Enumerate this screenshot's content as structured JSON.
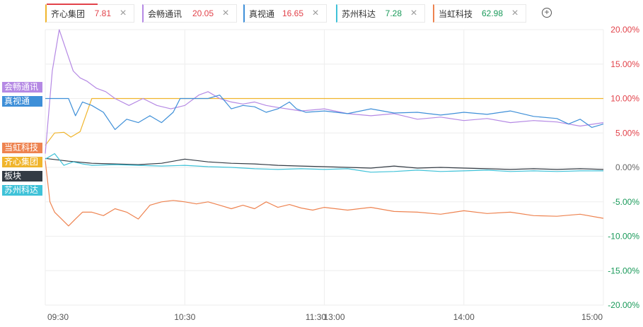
{
  "tabs": [
    {
      "name": "齐心集团",
      "price": "7.81",
      "color": "#f0b52c",
      "price_color": "#e2424a",
      "active": true
    },
    {
      "name": "会畅通讯",
      "price": "20.05",
      "color": "#b589e4",
      "price_color": "#e2424a"
    },
    {
      "name": "真视通",
      "price": "16.65",
      "color": "#3e8fd8",
      "price_color": "#e2424a"
    },
    {
      "name": "苏州科达",
      "price": "7.28",
      "color": "#3fc2d8",
      "price_color": "#1a9a5a"
    },
    {
      "name": "当虹科技",
      "price": "62.98",
      "color": "#ee8350",
      "price_color": "#1a9a5a"
    }
  ],
  "add_icon": "plus-circle-icon",
  "close_icon": "close-icon",
  "series_labels": [
    {
      "text": "会畅通讯",
      "color": "#b589e4"
    },
    {
      "text": "真视通",
      "color": "#3e8fd8"
    },
    {
      "text": "当虹科技",
      "color": "#ee8350"
    },
    {
      "text": "齐心集团",
      "color": "#f0b52c"
    },
    {
      "text": "板块",
      "color": "#333b44"
    },
    {
      "text": "苏州科达",
      "color": "#3fc2d8"
    }
  ],
  "chart_data": {
    "type": "line",
    "ylim": [
      -20,
      20
    ],
    "y_ticks": [
      20,
      15,
      10,
      5,
      0,
      -5,
      -10,
      -15,
      -20
    ],
    "y_tick_labels": [
      "20.00%",
      "15.00%",
      "10.00%",
      "5.00%",
      "0.00%",
      "-5.00%",
      "-10.00%",
      "-15.00%",
      "-20.00%"
    ],
    "x_ticks": [
      "09:30",
      "10:30",
      "11:30",
      "13:00",
      "14:00",
      "15:00"
    ],
    "grid": true,
    "series": [
      {
        "name": "齐心集团",
        "color": "#f0b52c",
        "x": [
          0,
          4,
          8,
          11,
          15,
          20,
          30,
          60,
          120,
          180,
          240
        ],
        "y": [
          3.2,
          5,
          5.1,
          4.4,
          5.2,
          10,
          10,
          10,
          10,
          10,
          10
        ]
      },
      {
        "name": "会畅通讯",
        "color": "#b589e4",
        "x": [
          0,
          3,
          6,
          9,
          12,
          15,
          18,
          22,
          26,
          30,
          36,
          42,
          48,
          54,
          60,
          66,
          70,
          75,
          80,
          85,
          90,
          95,
          100,
          110,
          120,
          130,
          140,
          150,
          160,
          170,
          180,
          190,
          200,
          210,
          220,
          230,
          240
        ],
        "y": [
          2,
          14,
          20,
          17,
          14,
          13,
          12.5,
          11.5,
          11,
          10,
          9,
          10,
          9,
          8.5,
          9,
          10.5,
          11,
          10,
          9.5,
          9.2,
          9.5,
          9,
          8.7,
          8.2,
          8.5,
          7.8,
          7.5,
          7.8,
          7,
          7.3,
          6.8,
          7.1,
          6.5,
          6.8,
          6.6,
          6,
          6.5
        ]
      },
      {
        "name": "真视通",
        "color": "#3e8fd8",
        "x": [
          0,
          5,
          10,
          13,
          16,
          20,
          25,
          30,
          35,
          40,
          45,
          50,
          55,
          58,
          62,
          66,
          70,
          75,
          80,
          85,
          90,
          95,
          100,
          105,
          108,
          112,
          120,
          130,
          140,
          150,
          160,
          170,
          180,
          190,
          200,
          210,
          220,
          225,
          230,
          235,
          240
        ],
        "y": [
          10,
          10,
          10,
          7.5,
          9.5,
          9,
          8,
          5.5,
          7,
          6.5,
          7.5,
          6.5,
          8,
          10,
          10,
          10,
          10,
          10.5,
          8.5,
          9,
          8.8,
          8,
          8.5,
          9.5,
          8.5,
          8,
          8.2,
          7.8,
          8.5,
          7.9,
          8,
          7.6,
          8,
          7.7,
          8.2,
          7.4,
          7.1,
          6.3,
          7,
          5.8,
          6.3
        ]
      },
      {
        "name": "当虹科技",
        "color": "#ee8350",
        "x": [
          0,
          2,
          4,
          7,
          10,
          13,
          16,
          20,
          25,
          30,
          35,
          40,
          45,
          50,
          55,
          60,
          65,
          70,
          75,
          80,
          85,
          90,
          95,
          100,
          105,
          110,
          115,
          120,
          130,
          140,
          150,
          160,
          170,
          180,
          190,
          200,
          210,
          220,
          230,
          240
        ],
        "y": [
          1,
          -5,
          -6.5,
          -7.5,
          -8.5,
          -7.5,
          -6.5,
          -6.5,
          -7,
          -6,
          -6.5,
          -7.5,
          -5.5,
          -5,
          -4.8,
          -5,
          -5.3,
          -5,
          -5.5,
          -6,
          -5.5,
          -6,
          -5,
          -5.8,
          -5.4,
          -5.9,
          -6.2,
          -5.8,
          -6.2,
          -5.8,
          -6.4,
          -6.5,
          -6.8,
          -6.3,
          -6.7,
          -6.5,
          -7,
          -7.1,
          -6.8,
          -7.4
        ]
      },
      {
        "name": "板块",
        "color": "#333b44",
        "x": [
          0,
          10,
          20,
          30,
          40,
          50,
          60,
          70,
          80,
          90,
          100,
          110,
          120,
          130,
          140,
          150,
          160,
          170,
          180,
          190,
          200,
          210,
          220,
          230,
          240
        ],
        "y": [
          1.3,
          0.9,
          0.6,
          0.5,
          0.4,
          0.6,
          1.2,
          0.8,
          0.6,
          0.5,
          0.3,
          0.2,
          0.1,
          0.0,
          -0.1,
          0.2,
          -0.1,
          0.0,
          -0.1,
          -0.2,
          -0.3,
          -0.2,
          -0.3,
          -0.2,
          -0.3
        ]
      },
      {
        "name": "苏州科达",
        "color": "#3fc2d8",
        "x": [
          0,
          4,
          8,
          12,
          16,
          20,
          30,
          40,
          50,
          60,
          70,
          80,
          90,
          100,
          110,
          120,
          130,
          140,
          150,
          160,
          170,
          180,
          190,
          200,
          210,
          220,
          230,
          240
        ],
        "y": [
          1.2,
          2,
          0.3,
          0.8,
          0.5,
          0.3,
          0.4,
          0.3,
          0.2,
          0.3,
          0.1,
          0.0,
          -0.2,
          -0.3,
          -0.2,
          -0.3,
          -0.2,
          -0.7,
          -0.6,
          -0.4,
          -0.6,
          -0.5,
          -0.4,
          -0.6,
          -0.5,
          -0.6,
          -0.5,
          -0.5
        ]
      }
    ]
  }
}
